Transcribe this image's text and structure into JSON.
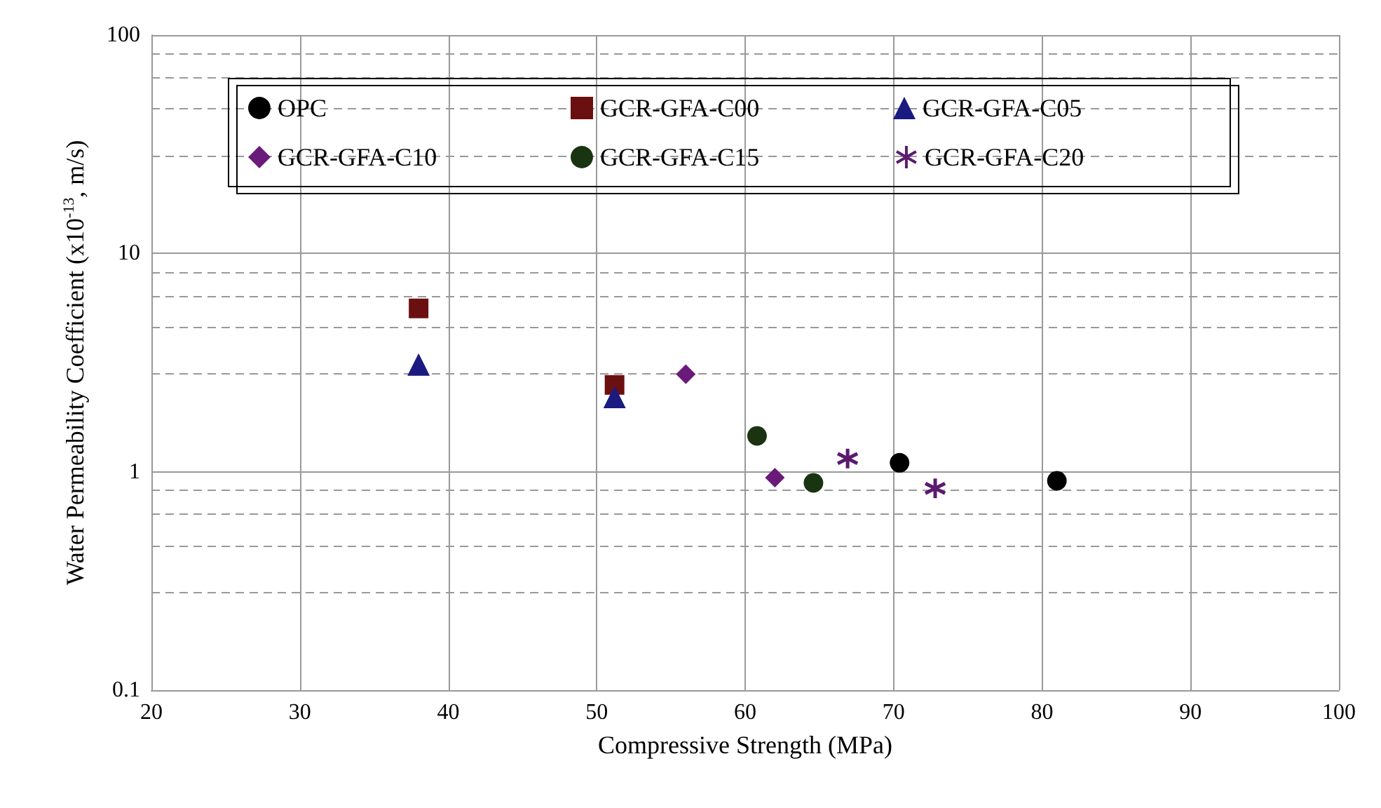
{
  "chart_data": {
    "type": "scatter",
    "xlabel": "Compressive Strength (MPa)",
    "ylabel": "Water Permeability Coefficient (x10$^{-13}$, m/s)",
    "xlim": [
      20,
      100
    ],
    "xticks": [
      20,
      30,
      40,
      50,
      60,
      70,
      80,
      90,
      100
    ],
    "ylim": [
      0.1,
      100
    ],
    "yticks": [
      0.1,
      1,
      10,
      100
    ],
    "log": "y",
    "grid": true,
    "legend": "top",
    "series": [
      {
        "name": "OPC",
        "color": "#000000",
        "marker": "circle",
        "x": [
          70.4,
          81.0
        ],
        "values": [
          1.1,
          0.91
        ]
      },
      {
        "name": "GCR-GFA-C00",
        "color": "#6b1010",
        "marker": "square",
        "x": [
          38.0,
          51.2
        ],
        "values": [
          5.6,
          2.5
        ]
      },
      {
        "name": "GCR-GFA-C05",
        "color": "#1a1a80",
        "marker": "triangle",
        "x": [
          38.0,
          51.2
        ],
        "values": [
          3.1,
          2.2
        ]
      },
      {
        "name": "GCR-GFA-C10",
        "color": "#6a1a7a",
        "marker": "diamond",
        "x": [
          56.0,
          62.0
        ],
        "values": [
          2.8,
          0.94
        ]
      },
      {
        "name": "GCR-GFA-C15",
        "color": "#1a3311",
        "marker": "circle",
        "x": [
          60.8,
          64.6
        ],
        "values": [
          1.46,
          0.89
        ]
      },
      {
        "name": "GCR-GFA-C20",
        "color": "#5a1a6e",
        "marker": "cross",
        "x": [
          66.9,
          72.8
        ],
        "values": [
          1.15,
          0.84
        ]
      }
    ]
  }
}
